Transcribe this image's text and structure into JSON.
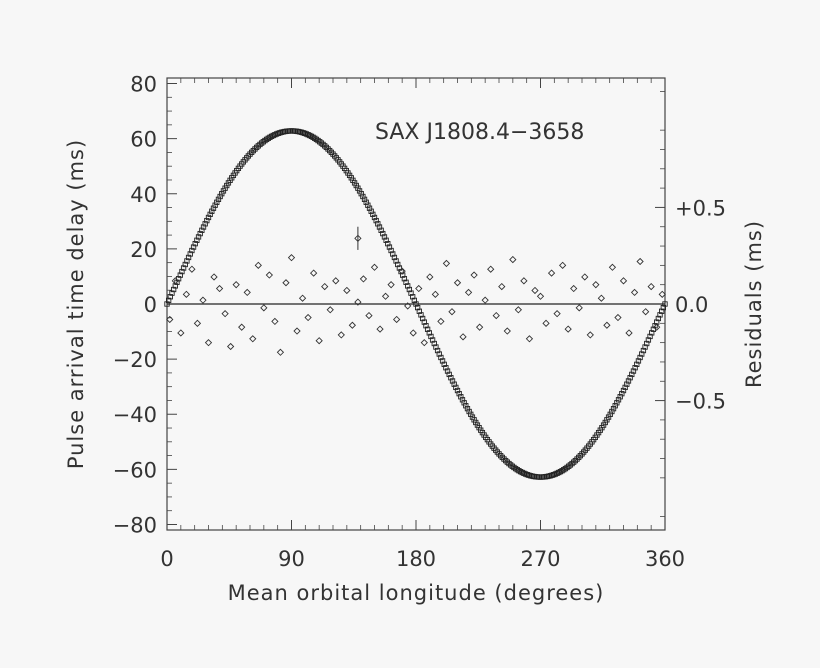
{
  "chart_data": {
    "type": "scatter",
    "title": "SAX J1808.4−3658",
    "xlabel": "Mean orbital longitude (degrees)",
    "ylabel": "Pulse arrival time delay (ms)",
    "y2label": "Residuals (ms)",
    "xlim": [
      0,
      360
    ],
    "ylim": [
      -82,
      82
    ],
    "y2lim": [
      -1.17,
      1.17
    ],
    "xticks": [
      0,
      90,
      180,
      270,
      360
    ],
    "xtick_labels": [
      "0",
      "90",
      "180",
      "270",
      "360"
    ],
    "yticks": [
      80,
      60,
      40,
      20,
      0,
      -20,
      -40,
      -60,
      -80
    ],
    "ytick_labels": [
      "80",
      "60",
      "40",
      "20",
      "0",
      "−20",
      "−40",
      "−60",
      "−80"
    ],
    "y2ticks": [
      0.5,
      0.0,
      -0.5
    ],
    "y2tick_labels": [
      "+0.5",
      "0.0",
      "−0.5"
    ],
    "grid": false,
    "series": [
      {
        "kind": "model_curve",
        "amplitude": 62.8,
        "peak_longitude": 90,
        "x": [
          0,
          10,
          20,
          30,
          40,
          50,
          60,
          70,
          80,
          90,
          100,
          110,
          120,
          130,
          140,
          150,
          160,
          170,
          180,
          190,
          200,
          210,
          220,
          230,
          240,
          250,
          260,
          270,
          280,
          290,
          300,
          310,
          320,
          330,
          340,
          350,
          360
        ],
        "values": [
          0.0,
          10.9,
          21.5,
          31.4,
          40.4,
          48.1,
          54.4,
          59.0,
          61.8,
          62.8,
          61.8,
          59.0,
          54.4,
          48.1,
          40.4,
          31.4,
          21.5,
          10.9,
          0.0,
          -10.9,
          -21.5,
          -31.4,
          -40.4,
          -48.1,
          -54.4,
          -59.0,
          -61.8,
          -62.8,
          -61.8,
          -59.0,
          -54.4,
          -48.1,
          -40.4,
          -31.4,
          -21.5,
          -10.9,
          0.0
        ]
      },
      {
        "kind": "residuals_scatter",
        "x": [
          2,
          6,
          10,
          14,
          18,
          22,
          26,
          30,
          34,
          38,
          42,
          46,
          50,
          54,
          58,
          62,
          66,
          70,
          74,
          78,
          82,
          86,
          90,
          94,
          98,
          102,
          106,
          110,
          114,
          118,
          122,
          126,
          130,
          134,
          138,
          142,
          146,
          150,
          154,
          158,
          162,
          166,
          170,
          174,
          178,
          182,
          186,
          190,
          194,
          198,
          202,
          206,
          210,
          214,
          218,
          222,
          226,
          230,
          234,
          238,
          242,
          246,
          250,
          254,
          258,
          262,
          266,
          270,
          274,
          278,
          282,
          286,
          290,
          294,
          298,
          302,
          306,
          310,
          314,
          318,
          322,
          326,
          330,
          334,
          338,
          342,
          346,
          350,
          354,
          358
        ],
        "values": [
          -0.08,
          0.12,
          -0.15,
          0.05,
          0.18,
          -0.1,
          0.02,
          -0.2,
          0.14,
          0.08,
          -0.05,
          -0.22,
          0.1,
          -0.12,
          0.06,
          -0.18,
          0.2,
          -0.02,
          0.15,
          -0.09,
          -0.25,
          0.11,
          0.24,
          -0.14,
          0.03,
          -0.07,
          0.16,
          -0.19,
          0.09,
          -0.03,
          0.12,
          -0.16,
          0.07,
          -0.11,
          0.01,
          0.13,
          -0.06,
          0.19,
          -0.13,
          0.04,
          0.1,
          -0.08,
          0.17,
          -0.01,
          -0.15,
          0.08,
          -0.2,
          0.14,
          0.05,
          -0.09,
          0.21,
          -0.04,
          0.11,
          -0.17,
          0.06,
          0.15,
          -0.12,
          0.02,
          0.18,
          -0.06,
          0.09,
          -0.14,
          0.23,
          -0.03,
          0.12,
          -0.18,
          0.07,
          0.04,
          -0.1,
          0.16,
          -0.05,
          0.2,
          -0.13,
          0.08,
          -0.02,
          0.14,
          -0.16,
          0.1,
          0.03,
          -0.11,
          0.19,
          -0.07,
          0.12,
          -0.15,
          0.06,
          0.22,
          -0.04,
          0.09,
          -0.12,
          0.05
        ]
      }
    ],
    "outlier": {
      "x": 138,
      "y2": 0.34,
      "error": 0.06
    }
  }
}
